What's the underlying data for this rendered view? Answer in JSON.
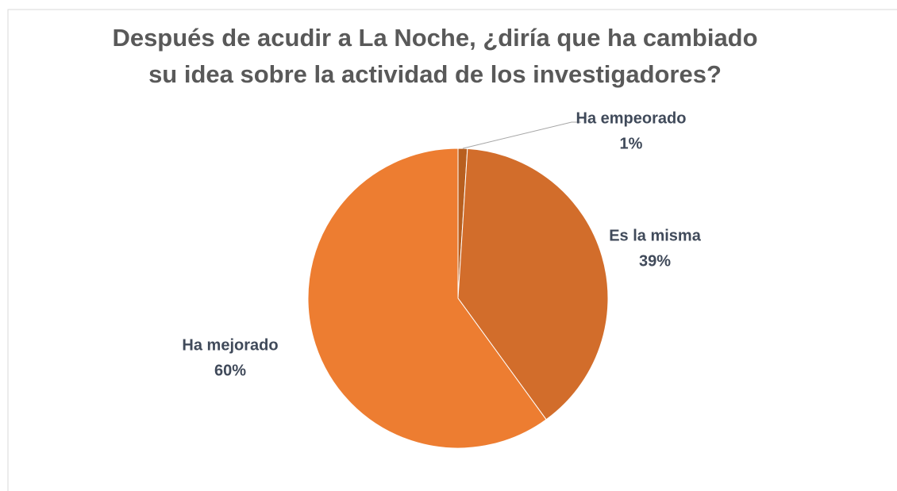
{
  "chart_data": {
    "type": "pie",
    "title": [
      "Después de acudir a La Noche,  ¿diría que ha cambiado",
      "su idea sobre la actividad de los investigadores?"
    ],
    "categories": [
      "Ha empeorado",
      "Es la misma",
      "Ha mejorado"
    ],
    "values": [
      1,
      39,
      60
    ],
    "value_labels": [
      "1%",
      "39%",
      "60%"
    ],
    "colors": [
      "#b85f1f",
      "#d26d2b",
      "#ed7d31"
    ]
  }
}
